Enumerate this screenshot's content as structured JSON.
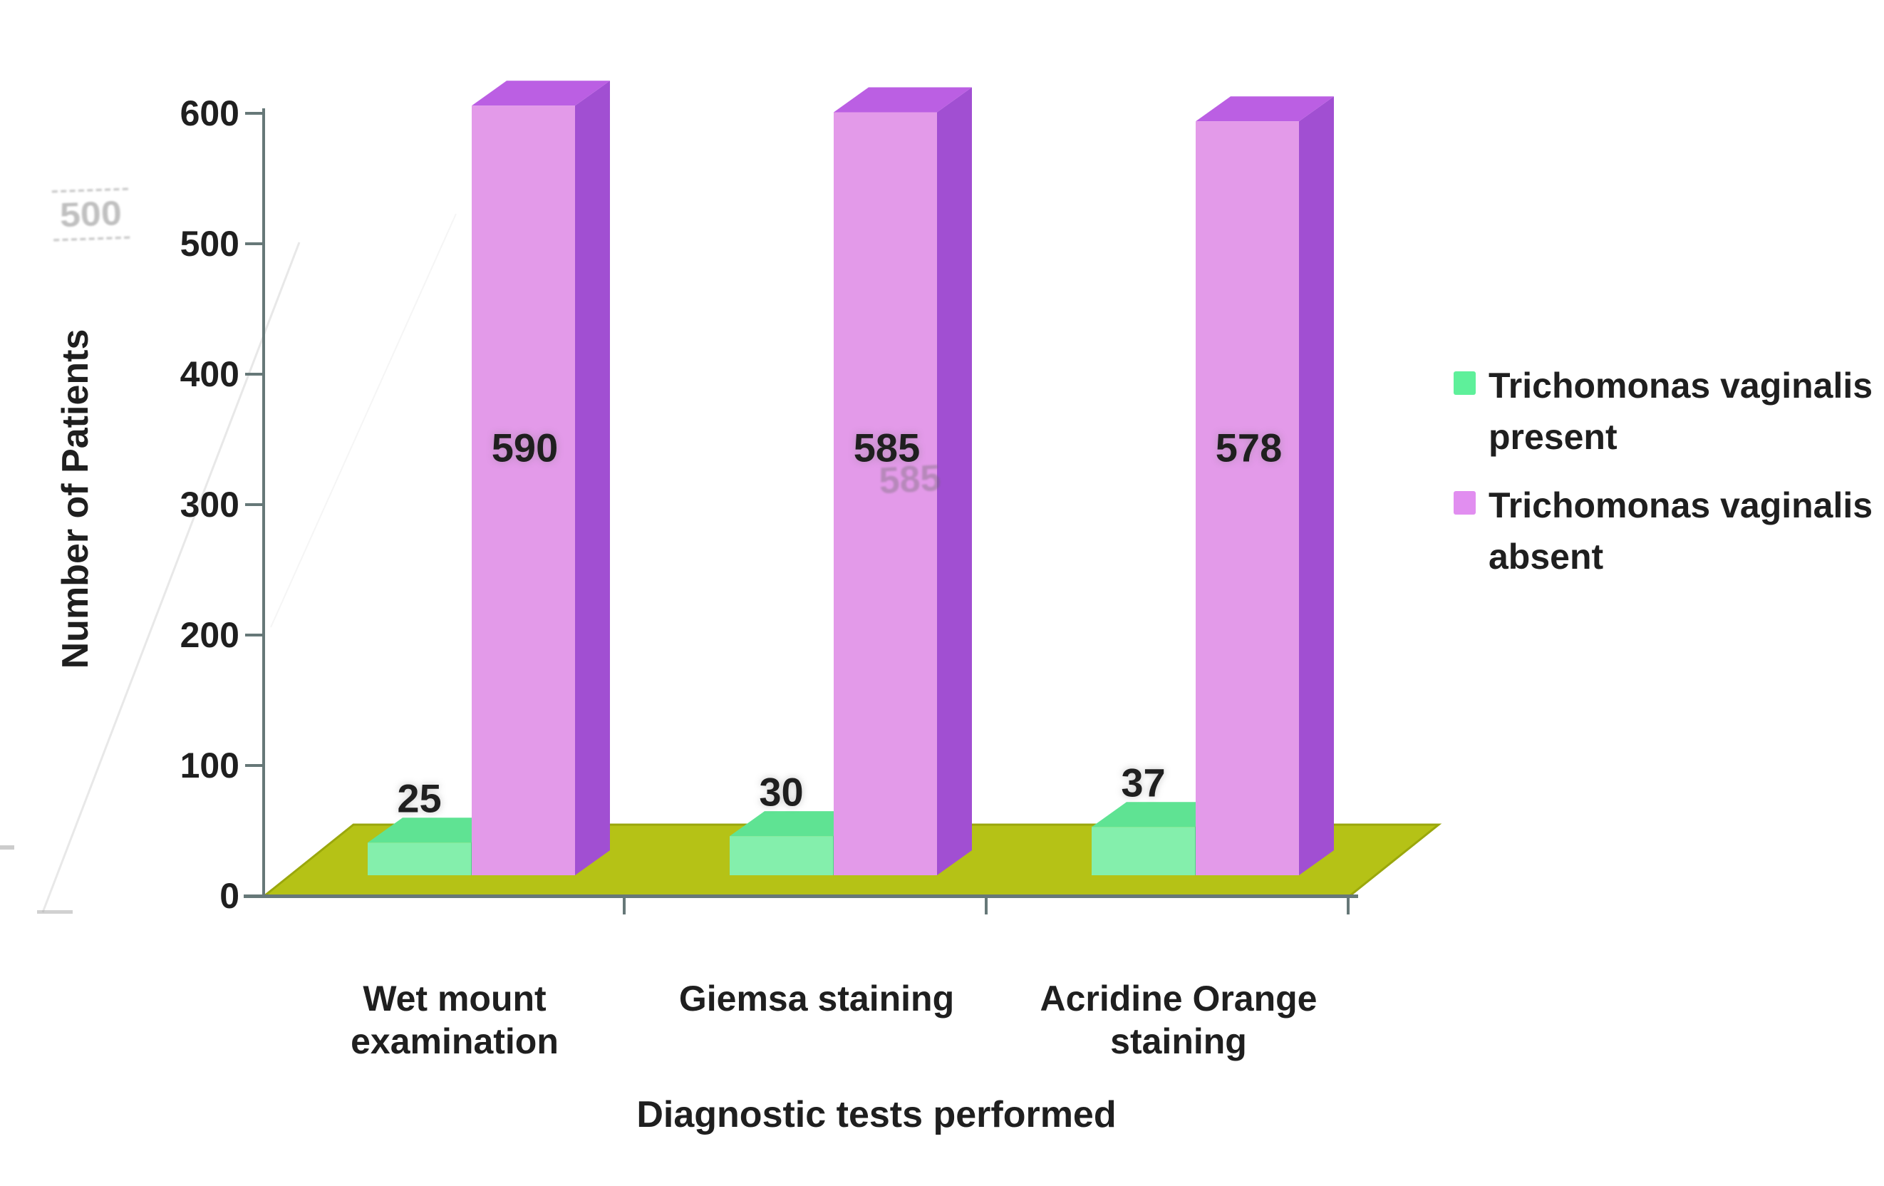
{
  "figure": {
    "background": "#ffffff",
    "y_axis": {
      "title": "Number of Patients",
      "ticks": [
        600,
        500,
        400,
        300,
        200,
        100,
        0
      ]
    },
    "x_axis": {
      "title": "Diagnostic tests performed"
    },
    "legend": [
      {
        "label_lines": [
          "Trichomonas vaginalis",
          "present"
        ],
        "color": "#5ef09a"
      },
      {
        "label_lines": [
          "Trichomonas vaginalis",
          "absent"
        ],
        "color": "#e18ef0"
      }
    ],
    "artifacts": {
      "ghost_left": "500",
      "ghost_middle": "585"
    }
  },
  "chart_data": {
    "type": "bar",
    "subtype": "3d-column",
    "title": "",
    "xlabel": "Diagnostic tests performed",
    "ylabel": "Number of Patients",
    "ylim": [
      0,
      600
    ],
    "ytick_step": 100,
    "grid": false,
    "legend_position": "right",
    "categories": [
      "Wet mount examination",
      "Giemsa staining",
      "Acridine Orange staining"
    ],
    "categories_display": [
      [
        "Wet mount",
        "examination"
      ],
      [
        "Giemsa staining"
      ],
      [
        "Acridine Orange",
        "staining"
      ]
    ],
    "series": [
      {
        "name": "Trichomonas vaginalis present",
        "values": [
          25,
          30,
          37
        ],
        "color_front": "#84efac",
        "color_top": "#5fe393",
        "color_side": "#4cd583"
      },
      {
        "name": "Trichomonas vaginalis absent",
        "values": [
          590,
          585,
          578
        ],
        "color_front": "#e39ae9",
        "color_top": "#bb5fe3",
        "color_side": "#a14fd2"
      }
    ],
    "floor_color": "#b5c216",
    "floor_edge_color": "#9aa70c",
    "axis_color": "#667878",
    "text_color": "#1f1f1f"
  }
}
